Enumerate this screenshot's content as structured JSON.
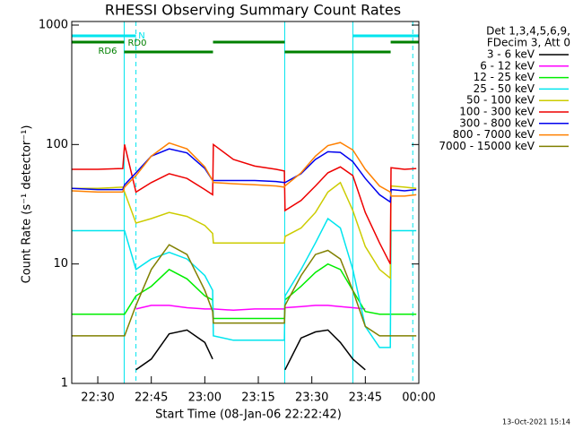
{
  "chart_data": {
    "type": "line",
    "title": "RHESSI Observing Summary Count Rates",
    "xlabel": "Start Time (08-Jan-06 22:22:42)",
    "ylabel": "Count Rate (s⁻¹ detector⁻¹)",
    "footer": "13-Oct-2021 15:14",
    "legend_header": [
      "Det 1,3,4,5,6,9,",
      "FDecim 3, Att 0"
    ],
    "legend": "right",
    "yscale": "log",
    "xlim": [
      22.7,
      120
    ],
    "ylim": [
      1,
      1000
    ],
    "yticks": [
      1,
      10,
      100,
      1000
    ],
    "xticks": [
      {
        "value": 30,
        "label": "22:30"
      },
      {
        "value": 45,
        "label": "22:45"
      },
      {
        "value": 60,
        "label": "23:00"
      },
      {
        "value": 75,
        "label": "23:15"
      },
      {
        "value": 90,
        "label": "23:30"
      },
      {
        "value": 105,
        "label": "23:45"
      },
      {
        "value": 120,
        "label": "00:00"
      }
    ],
    "x": [
      22.7,
      30,
      37,
      37.5,
      40.7,
      45,
      50,
      55,
      60,
      62.2,
      62.4,
      68,
      74,
      80,
      82.3,
      82.5,
      87,
      91,
      94.5,
      98,
      101.5,
      105,
      109,
      112,
      112.2,
      116,
      119.3
    ],
    "series": [
      {
        "name": "3 - 6 keV",
        "color": "#000000",
        "values": [
          null,
          null,
          null,
          null,
          1.3,
          1.6,
          2.6,
          2.8,
          2.2,
          1.6,
          null,
          null,
          null,
          null,
          null,
          1.3,
          2.4,
          2.7,
          2.8,
          2.2,
          1.6,
          1.3,
          null,
          null,
          null,
          null,
          null
        ]
      },
      {
        "name": "6 - 12 keV",
        "color": "#ff00ff",
        "values": [
          null,
          null,
          null,
          null,
          4.2,
          4.5,
          4.5,
          4.3,
          4.2,
          4.2,
          4.2,
          4.1,
          4.2,
          4.2,
          4.2,
          4.3,
          4.4,
          4.5,
          4.5,
          4.4,
          4.3,
          4.2,
          null,
          null,
          null,
          null,
          null
        ]
      },
      {
        "name": "12 - 25 keV",
        "color": "#00ee00",
        "values": [
          3.8,
          3.8,
          3.8,
          3.8,
          5.4,
          6.5,
          9,
          7.5,
          5.4,
          5,
          3.5,
          3.5,
          3.5,
          3.5,
          3.5,
          5,
          6.5,
          8.5,
          10,
          9,
          6,
          4,
          3.8,
          3.8,
          3.8,
          3.8,
          3.8
        ]
      },
      {
        "name": "25 - 50 keV",
        "color": "#00e5ee",
        "values": [
          19,
          19,
          19,
          19,
          9,
          11,
          12.5,
          11,
          8,
          6,
          2.5,
          2.3,
          2.3,
          2.3,
          2.3,
          5.4,
          9,
          15,
          24,
          20,
          9,
          3,
          2,
          2,
          19,
          19,
          19
        ]
      },
      {
        "name": "50 - 100 keV",
        "color": "#cccc00",
        "values": [
          43,
          43,
          44,
          40,
          22,
          24,
          27,
          25,
          21,
          18,
          15,
          15,
          15,
          15,
          15,
          17,
          20,
          27,
          40,
          48,
          28,
          14,
          9,
          7.6,
          45,
          44,
          43
        ]
      },
      {
        "name": "100 - 300 keV",
        "color": "#ee0000",
        "values": [
          62,
          62,
          63,
          100,
          40,
          48,
          57,
          52,
          42,
          38,
          100,
          75,
          66,
          62,
          60,
          28,
          34,
          45,
          58,
          65,
          55,
          27,
          15,
          10,
          64,
          62,
          63
        ]
      },
      {
        "name": "300 - 800 keV",
        "color": "#0000ee",
        "values": [
          43,
          42,
          42,
          46,
          58,
          80,
          92,
          85,
          63,
          50,
          50,
          50,
          50,
          49,
          48,
          48,
          57,
          75,
          87,
          86,
          72,
          52,
          38,
          33,
          42,
          41,
          42
        ]
      },
      {
        "name": "800 - 7000 keV",
        "color": "#ff8000",
        "values": [
          41,
          40,
          40,
          44,
          55,
          80,
          103,
          92,
          65,
          50,
          48,
          47,
          46,
          45,
          44,
          45,
          58,
          80,
          98,
          104,
          90,
          62,
          45,
          40,
          37,
          37,
          38
        ]
      },
      {
        "name": "7000 - 15000 keV",
        "color": "#808000",
        "values": [
          2.5,
          2.5,
          2.5,
          2.5,
          4.5,
          9,
          14.5,
          12,
          6,
          4,
          3.2,
          3.2,
          3.2,
          3.2,
          3.2,
          4.5,
          8,
          12,
          13,
          11,
          6,
          3,
          2.5,
          2.5,
          2.5,
          2.5,
          2.5
        ]
      }
    ],
    "flags": [
      {
        "name": "N",
        "color": "#00e5ee",
        "segments": [
          [
            22.7,
            40.7
          ],
          [
            101.5,
            120
          ]
        ]
      },
      {
        "name": "RD0",
        "color": "#008000",
        "segments": [
          [
            22.7,
            37.4
          ],
          [
            62.3,
            82.4
          ],
          [
            112.1,
            120
          ]
        ]
      },
      {
        "name": "RD6",
        "color": "#008000",
        "segments": [
          [
            37.4,
            62.3
          ],
          [
            82.4,
            112.1
          ]
        ]
      }
    ],
    "event_lines": [
      {
        "x": 37.4,
        "style": "solid"
      },
      {
        "x": 40.7,
        "style": "dashed"
      },
      {
        "x": 82.4,
        "style": "solid"
      },
      {
        "x": 101.5,
        "style": "solid"
      },
      {
        "x": 118.3,
        "style": "dashed"
      }
    ]
  }
}
